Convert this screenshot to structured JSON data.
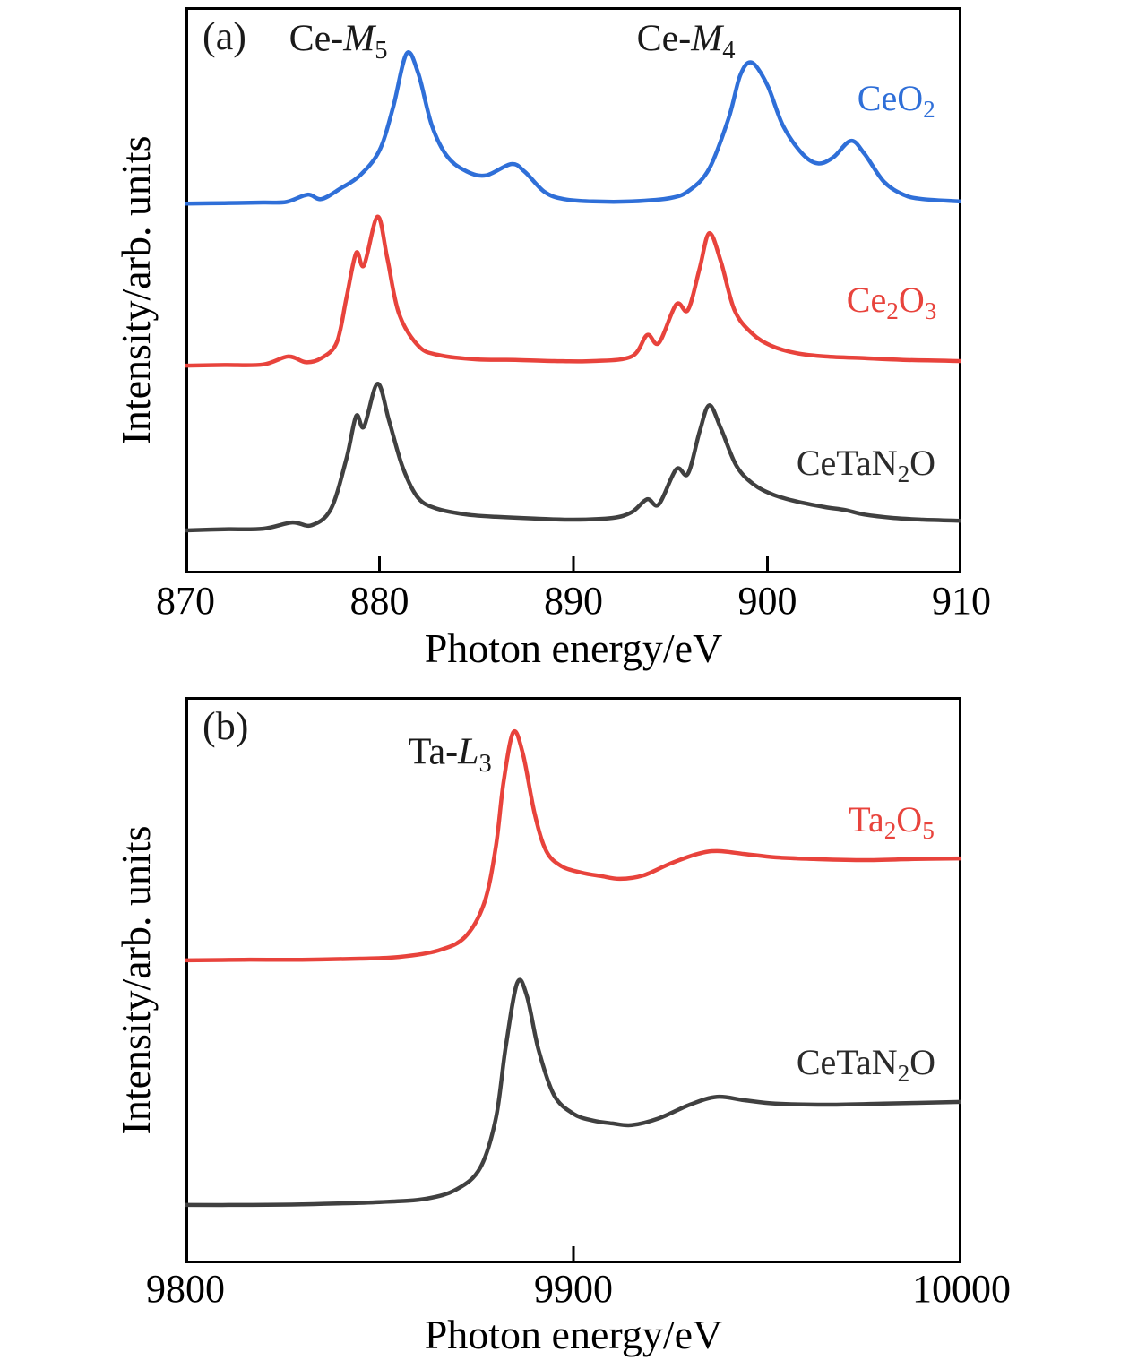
{
  "figure": {
    "background": "#ffffff"
  },
  "colors": {
    "axis": "#000000",
    "text": "#1a1a1a",
    "blue": "#2f6fd8",
    "red": "#e8433c",
    "dark": "#404040"
  },
  "chart_data": [
    {
      "type": "line",
      "panel": "a",
      "panel_label": "(a)",
      "xlabel": "Photon energy/eV",
      "ylabel": "Intensity/arb. units",
      "xlim": [
        870,
        910
      ],
      "xtick_values": [
        870,
        880,
        890,
        900,
        910
      ],
      "xtick_labels": [
        "870",
        "880",
        "890",
        "900",
        "910"
      ],
      "ylim": [
        0,
        1
      ],
      "grid": false,
      "series": [
        {
          "name": "CeO2",
          "color": "#2f6fd8",
          "x": [
            870,
            872,
            874,
            875.2,
            876.3,
            877,
            878,
            879,
            880,
            880.7,
            881.4,
            882,
            882.7,
            883.5,
            884.5,
            885.5,
            886.8,
            887.5,
            888.5,
            889.5,
            891,
            893,
            895,
            896,
            897,
            898,
            898.6,
            899.2,
            900,
            900.8,
            901.8,
            902.6,
            903.4,
            904.3,
            905,
            906,
            907,
            908,
            910
          ],
          "y": [
            0.653,
            0.654,
            0.655,
            0.656,
            0.669,
            0.661,
            0.68,
            0.703,
            0.747,
            0.823,
            0.918,
            0.883,
            0.791,
            0.736,
            0.71,
            0.703,
            0.723,
            0.709,
            0.674,
            0.661,
            0.657,
            0.657,
            0.663,
            0.677,
            0.715,
            0.804,
            0.88,
            0.902,
            0.862,
            0.791,
            0.741,
            0.724,
            0.735,
            0.764,
            0.741,
            0.692,
            0.669,
            0.661,
            0.657
          ]
        },
        {
          "name": "Ce2O3",
          "color": "#e8433c",
          "x": [
            870,
            872,
            874,
            875.3,
            876.2,
            877,
            877.8,
            878.3,
            878.8,
            879.2,
            879.9,
            880.4,
            881,
            882,
            883,
            885,
            887,
            889,
            891,
            893,
            893.8,
            894.4,
            895.3,
            895.9,
            896.5,
            897,
            897.6,
            898.3,
            899.2,
            900.2,
            901.5,
            903,
            905,
            907,
            910
          ],
          "y": [
            0.367,
            0.368,
            0.369,
            0.383,
            0.373,
            0.38,
            0.408,
            0.487,
            0.566,
            0.544,
            0.63,
            0.557,
            0.459,
            0.402,
            0.386,
            0.378,
            0.377,
            0.375,
            0.375,
            0.383,
            0.421,
            0.407,
            0.475,
            0.465,
            0.538,
            0.601,
            0.551,
            0.465,
            0.424,
            0.402,
            0.389,
            0.383,
            0.38,
            0.377,
            0.375
          ]
        },
        {
          "name": "CeTaN2O",
          "color": "#404040",
          "x": [
            870,
            872,
            874,
            875.5,
            876.5,
            877.5,
            878.3,
            878.8,
            879.2,
            879.9,
            880.5,
            881.2,
            882,
            883,
            884.5,
            886,
            888,
            890,
            892,
            893,
            893.8,
            894.4,
            895.3,
            895.9,
            896.5,
            897,
            897.6,
            898.4,
            899.3,
            900.3,
            901.5,
            903,
            904,
            905,
            906.5,
            908,
            910
          ],
          "y": [
            0.076,
            0.078,
            0.079,
            0.09,
            0.085,
            0.114,
            0.203,
            0.278,
            0.259,
            0.335,
            0.269,
            0.187,
            0.133,
            0.114,
            0.104,
            0.1,
            0.097,
            0.095,
            0.098,
            0.108,
            0.131,
            0.122,
            0.184,
            0.176,
            0.25,
            0.297,
            0.256,
            0.19,
            0.157,
            0.139,
            0.127,
            0.117,
            0.112,
            0.104,
            0.098,
            0.095,
            0.093
          ]
        }
      ],
      "annotations": [
        {
          "id": "panel-label-a",
          "kind": "panel",
          "anchor": "tl",
          "fx": 0.022,
          "fy": 0.018,
          "color": "#1a1a1a",
          "parts": [
            {
              "t": "(a)"
            }
          ]
        },
        {
          "id": "peak-label-ce-m5",
          "kind": "peak",
          "anchor": "c",
          "fx": 0.197,
          "fy": 0.062,
          "color": "#1a1a1a",
          "parts": [
            {
              "t": "Ce-"
            },
            {
              "t": "M",
              "s": "i"
            },
            {
              "t": "5",
              "s": "sub"
            }
          ]
        },
        {
          "id": "peak-label-ce-m4",
          "kind": "peak",
          "anchor": "c",
          "fx": 0.645,
          "fy": 0.062,
          "color": "#1a1a1a",
          "parts": [
            {
              "t": "Ce-"
            },
            {
              "t": "M",
              "s": "i"
            },
            {
              "t": "4",
              "s": "sub"
            }
          ]
        },
        {
          "id": "series-label-ceo2",
          "kind": "series",
          "anchor": "c",
          "fx": 0.916,
          "fy": 0.166,
          "color": "#2f6fd8",
          "parts": [
            {
              "t": "CeO"
            },
            {
              "t": "2",
              "s": "sub"
            }
          ]
        },
        {
          "id": "series-label-ce2o3",
          "kind": "series",
          "anchor": "c",
          "fx": 0.91,
          "fy": 0.522,
          "color": "#e8433c",
          "parts": [
            {
              "t": "Ce"
            },
            {
              "t": "2",
              "s": "sub"
            },
            {
              "t": "O"
            },
            {
              "t": "3",
              "s": "sub"
            }
          ]
        },
        {
          "id": "series-label-cetan2o-a",
          "kind": "series",
          "anchor": "c",
          "fx": 0.877,
          "fy": 0.81,
          "color": "#2b2b2b",
          "parts": [
            {
              "t": "CeTaN"
            },
            {
              "t": "2",
              "s": "sub"
            },
            {
              "t": "O"
            }
          ]
        }
      ]
    },
    {
      "type": "line",
      "panel": "b",
      "panel_label": "(b)",
      "xlabel": "Photon energy/eV",
      "ylabel": "Intensity/arb. units",
      "xlim": [
        9800,
        10000
      ],
      "xtick_values": [
        9800,
        9900,
        10000
      ],
      "xtick_labels": [
        "9800",
        "9900",
        "10000"
      ],
      "ylim": [
        0,
        1
      ],
      "grid": false,
      "series": [
        {
          "name": "Ta2O5",
          "color": "#e8433c",
          "x": [
            9800,
            9815,
            9830,
            9845,
            9855,
            9865,
            9872,
            9877,
            9880,
            9882,
            9884.5,
            9887,
            9890,
            9893,
            9897,
            9902,
            9907,
            9912,
            9918,
            9925,
            9932,
            9937,
            9944,
            9952,
            9962,
            9975,
            9988,
            10000
          ],
          "y": [
            0.535,
            0.536,
            0.536,
            0.538,
            0.541,
            0.552,
            0.576,
            0.636,
            0.736,
            0.851,
            0.938,
            0.899,
            0.794,
            0.728,
            0.701,
            0.69,
            0.684,
            0.679,
            0.685,
            0.706,
            0.723,
            0.728,
            0.723,
            0.717,
            0.714,
            0.712,
            0.714,
            0.715
          ]
        },
        {
          "name": "CeTaN2O",
          "color": "#404040",
          "x": [
            9800,
            9815,
            9830,
            9850,
            9862,
            9870,
            9876,
            9880,
            9882.5,
            9885.5,
            9888,
            9891,
            9895,
            9900,
            9905,
            9910,
            9915,
            9922,
            9930,
            9937,
            9944,
            9952,
            9965,
            9980,
            10000
          ],
          "y": [
            0.103,
            0.103,
            0.104,
            0.108,
            0.114,
            0.131,
            0.169,
            0.256,
            0.38,
            0.495,
            0.472,
            0.377,
            0.297,
            0.264,
            0.252,
            0.247,
            0.244,
            0.256,
            0.28,
            0.294,
            0.288,
            0.282,
            0.28,
            0.282,
            0.285
          ]
        }
      ],
      "annotations": [
        {
          "id": "panel-label-b",
          "kind": "panel",
          "anchor": "tl",
          "fx": 0.022,
          "fy": 0.018,
          "color": "#1a1a1a",
          "parts": [
            {
              "t": "(b)"
            }
          ]
        },
        {
          "id": "peak-label-ta-l3",
          "kind": "peak",
          "anchor": "c",
          "fx": 0.341,
          "fy": 0.103,
          "color": "#1a1a1a",
          "parts": [
            {
              "t": "Ta-"
            },
            {
              "t": "L",
              "s": "i"
            },
            {
              "t": "3",
              "s": "sub"
            }
          ]
        },
        {
          "id": "series-label-ta2o5",
          "kind": "series",
          "anchor": "c",
          "fx": 0.91,
          "fy": 0.222,
          "color": "#e8433c",
          "parts": [
            {
              "t": "Ta"
            },
            {
              "t": "2",
              "s": "sub"
            },
            {
              "t": "O"
            },
            {
              "t": "5",
              "s": "sub"
            }
          ]
        },
        {
          "id": "series-label-cetan2o-b",
          "kind": "series",
          "anchor": "c",
          "fx": 0.877,
          "fy": 0.65,
          "color": "#2b2b2b",
          "parts": [
            {
              "t": "CeTaN"
            },
            {
              "t": "2",
              "s": "sub"
            },
            {
              "t": "O"
            }
          ]
        }
      ]
    }
  ]
}
